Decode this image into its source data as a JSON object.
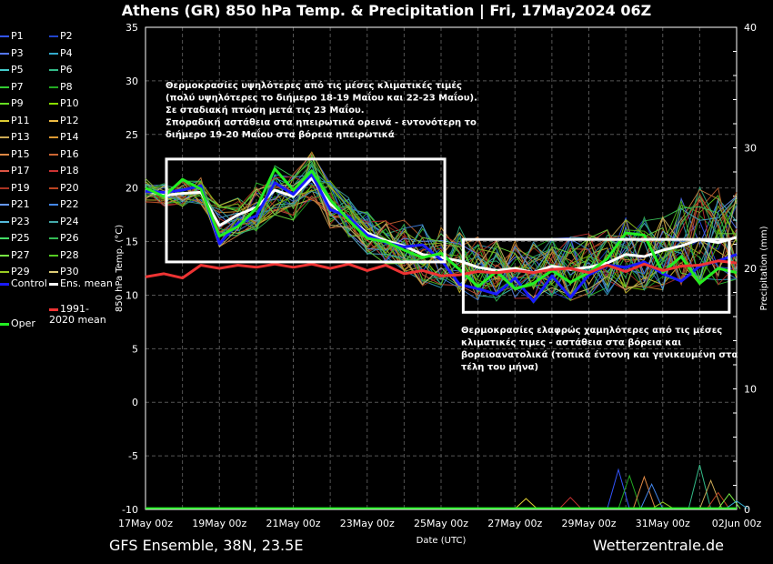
{
  "page": {
    "title": "Athens  (GR)  850 hPa Temp. & Precipitation | Fri, 17May2024 06Z",
    "footer_left": "GFS Ensemble, 38N, 23.5E",
    "footer_right": "Wetterzentrale.de"
  },
  "chart_data": {
    "type": "line",
    "title": "Athens  (GR)  850 hPa Temp. & Precipitation | Fri, 17May2024 06Z",
    "xlabel": "Date (UTC)",
    "ylabel": "850 hPa Temp. (°C)",
    "y2label": "Precipitation (mm)",
    "ylim": [
      -10,
      35
    ],
    "y2lim": [
      0,
      40
    ],
    "yticks": [
      "35",
      "30",
      "25",
      "20",
      "15",
      "10",
      "5",
      "0",
      "-5",
      "-10"
    ],
    "y2ticks": [
      "40",
      "30",
      "20",
      "10",
      "0"
    ],
    "xlim": [
      "17May 00z",
      "02Jun 00z"
    ],
    "xticks": [
      "17May 00z",
      "19May 00z",
      "21May 00z",
      "23May 00z",
      "25May 00z",
      "27May 00z",
      "29May 00z",
      "31May 00z",
      "02Jun 00z"
    ],
    "grid": true,
    "legend": {
      "placement": "left",
      "entries": [
        {
          "name": "P1",
          "color": "#3355ff"
        },
        {
          "name": "P2",
          "color": "#2244cc"
        },
        {
          "name": "P3",
          "color": "#5577ff"
        },
        {
          "name": "P4",
          "color": "#33aacc"
        },
        {
          "name": "P5",
          "color": "#44cccc"
        },
        {
          "name": "P6",
          "color": "#33bb88"
        },
        {
          "name": "P7",
          "color": "#33cc33"
        },
        {
          "name": "P8",
          "color": "#22aa22"
        },
        {
          "name": "P9",
          "color": "#66dd22"
        },
        {
          "name": "P10",
          "color": "#88dd00"
        },
        {
          "name": "P11",
          "color": "#ddcc33"
        },
        {
          "name": "P12",
          "color": "#eebb44"
        },
        {
          "name": "P13",
          "color": "#ccaa55"
        },
        {
          "name": "P14",
          "color": "#dd9933"
        },
        {
          "name": "P15",
          "color": "#dd8844"
        },
        {
          "name": "P16",
          "color": "#cc6633"
        },
        {
          "name": "P17",
          "color": "#dd5544"
        },
        {
          "name": "P18",
          "color": "#cc3333"
        },
        {
          "name": "P19",
          "color": "#aa3322"
        },
        {
          "name": "P20",
          "color": "#bb4422"
        },
        {
          "name": "P21",
          "color": "#6699ff"
        },
        {
          "name": "P22",
          "color": "#4488ee"
        },
        {
          "name": "P23",
          "color": "#55bbdd"
        },
        {
          "name": "P24",
          "color": "#44aaaa"
        },
        {
          "name": "P25",
          "color": "#44dd66"
        },
        {
          "name": "P26",
          "color": "#33bb55"
        },
        {
          "name": "P27",
          "color": "#77ee44"
        },
        {
          "name": "P28",
          "color": "#55cc22"
        },
        {
          "name": "P29",
          "color": "#99cc22"
        },
        {
          "name": "P30",
          "color": "#ddcc77"
        },
        {
          "name": "Control",
          "color": "#1a1aff"
        },
        {
          "name": "Ens. mean",
          "color": "#ffffff"
        },
        {
          "name": "1991-2020 mean",
          "color": "#ee3333"
        },
        {
          "name": "Oper",
          "color": "#22ee22"
        }
      ]
    },
    "series": [
      {
        "name": "Ens. mean",
        "color": "#ffffff",
        "x_days": [
          0,
          0.5,
          1,
          1.5,
          2,
          2.5,
          3,
          3.5,
          4,
          4.5,
          5,
          5.5,
          6,
          6.5,
          7,
          7.5,
          8,
          8.5,
          9,
          9.5,
          10,
          10.5,
          11,
          11.5,
          12,
          12.5,
          13,
          13.5,
          14,
          14.5,
          15,
          15.5,
          16
        ],
        "values": [
          19.8,
          19.3,
          19.5,
          19.6,
          16.5,
          17.5,
          18.2,
          19.8,
          19.2,
          20.9,
          18.5,
          17.2,
          15.8,
          15.1,
          14.6,
          13.8,
          13.5,
          13.2,
          12.6,
          12.3,
          12.5,
          12.1,
          12.7,
          12.4,
          12.6,
          13.0,
          13.8,
          13.6,
          14.2,
          14.6,
          15.2,
          14.9,
          15.4
        ]
      },
      {
        "name": "Control",
        "color": "#1a1aff",
        "x_days": [
          0,
          0.5,
          1,
          1.5,
          2,
          2.5,
          3,
          3.5,
          4,
          4.5,
          5,
          5.5,
          6,
          6.5,
          7,
          7.5,
          8,
          8.5,
          9,
          9.5,
          10,
          10.5,
          11,
          11.5,
          12,
          12.5,
          13,
          13.5,
          14,
          14.5,
          15,
          15.5,
          16
        ],
        "values": [
          19.7,
          19.6,
          19.8,
          20.2,
          14.8,
          16.7,
          17.4,
          20.5,
          19.4,
          21.3,
          18.0,
          17.3,
          15.6,
          14.9,
          14.5,
          14.7,
          13.3,
          11.0,
          10.6,
          10.1,
          11.6,
          9.4,
          11.8,
          9.8,
          11.9,
          12.8,
          12.6,
          13.1,
          12.0,
          11.3,
          12.7,
          13.2,
          13.8
        ]
      },
      {
        "name": "Oper",
        "color": "#22ee22",
        "x_days": [
          0,
          0.5,
          1,
          1.5,
          2,
          2.5,
          3,
          3.5,
          4,
          4.5,
          5,
          5.5,
          6,
          6.5,
          7,
          7.5,
          8,
          8.5,
          9,
          9.5,
          10,
          10.5,
          11,
          11.5,
          12,
          12.5,
          13,
          13.5,
          14,
          14.5,
          15,
          15.5,
          16
        ],
        "values": [
          20.0,
          19.2,
          20.8,
          19.9,
          15.5,
          16.4,
          18.1,
          21.8,
          19.8,
          21.6,
          18.9,
          17.0,
          15.3,
          15.0,
          14.2,
          13.5,
          13.9,
          12.4,
          10.8,
          12.2,
          10.6,
          11.1,
          12.3,
          11.2,
          12.1,
          13.4,
          15.8,
          15.6,
          12.1,
          13.6,
          11.1,
          12.5,
          12.1
        ]
      },
      {
        "name": "1991-2020 mean",
        "color": "#ee3333",
        "x_days": [
          0,
          0.5,
          1,
          1.5,
          2,
          2.5,
          3,
          3.5,
          4,
          4.5,
          5,
          5.5,
          6,
          6.5,
          7,
          7.5,
          8,
          8.5,
          9,
          9.5,
          10,
          10.5,
          11,
          11.5,
          12,
          12.5,
          13,
          13.5,
          14,
          14.5,
          15,
          15.5,
          16
        ],
        "values": [
          11.7,
          12.0,
          11.6,
          12.8,
          12.5,
          12.8,
          12.6,
          12.9,
          12.6,
          12.9,
          12.5,
          12.9,
          12.3,
          12.8,
          12.0,
          12.3,
          11.8,
          11.9,
          12.2,
          12.1,
          12.3,
          12.1,
          12.4,
          12.5,
          12.1,
          12.8,
          12.2,
          12.9,
          12.3,
          12.7,
          12.8,
          13.2,
          13.0
        ]
      }
    ],
    "ensemble_spread": {
      "low": [
        18.5,
        18.0,
        18.2,
        18.0,
        14.5,
        15.5,
        16.0,
        17.5,
        17.0,
        18.5,
        16.0,
        15.0,
        13.5,
        12.5,
        11.5,
        10.5,
        10.0,
        9.5,
        9.0,
        9.0,
        9.2,
        9.0,
        9.5,
        9.5,
        9.8,
        10.0,
        10.2,
        10.5,
        10.5,
        11.0,
        11.0,
        11.0,
        11.5
      ],
      "high": [
        21.0,
        20.5,
        21.0,
        21.0,
        19.0,
        20.0,
        21.5,
        23.5,
        22.5,
        24.0,
        21.0,
        19.5,
        18.0,
        17.5,
        17.0,
        17.0,
        16.5,
        17.0,
        16.0,
        15.5,
        15.5,
        15.5,
        16.0,
        16.5,
        17.0,
        17.5,
        18.5,
        19.0,
        20.0,
        21.0,
        22.0,
        22.5,
        21.5
      ]
    },
    "precip_spikes": [
      {
        "day": 12.8,
        "mm": 3.3
      },
      {
        "day": 13.1,
        "mm": 2.8
      },
      {
        "day": 13.5,
        "mm": 2.7
      },
      {
        "day": 13.7,
        "mm": 2.1
      },
      {
        "day": 14.0,
        "mm": 0.6
      },
      {
        "day": 15.0,
        "mm": 3.7
      },
      {
        "day": 15.3,
        "mm": 2.4
      },
      {
        "day": 15.5,
        "mm": 1.4
      },
      {
        "day": 15.8,
        "mm": 1.3
      },
      {
        "day": 16.0,
        "mm": 0.7
      },
      {
        "day": 10.3,
        "mm": 0.9
      },
      {
        "day": 11.5,
        "mm": 1.0
      }
    ],
    "boxes": [
      {
        "x_days": [
          0,
          8.1
        ],
        "y": [
          13.1,
          22.7
        ]
      },
      {
        "x_days": [
          8.6,
          15.8
        ],
        "y": [
          8.4,
          15.2
        ]
      }
    ],
    "annotations": [
      {
        "lines": [
          "Θερμοκρασίες υψηλότερες από τις μέσες κλιματικές τιμές",
          "(πολύ υψηλότερες το διήμερο 18-19 Μαΐου και 22-23 Μαΐου).",
          "Σε σταδιακή πτώση μετά τις 23 Μαΐου.",
          "Σποραδική αστάθεια στα ηπειρωτικά ορεινά - εντονότερη το",
          "διήμερο 19-20 Μαΐου στα βόρεια ηπειρωτικά"
        ]
      },
      {
        "lines": [
          "Θερμοκρασίες ελαφρώς χαμηλότερες από τις μέσες",
          "κλιματικές τιμες - αστάθεια στα βόρεια και",
          "βορειοανατολικά (τοπικά έντονη και γενικευμένη στα",
          "τέλη του μήνα)"
        ]
      }
    ]
  }
}
